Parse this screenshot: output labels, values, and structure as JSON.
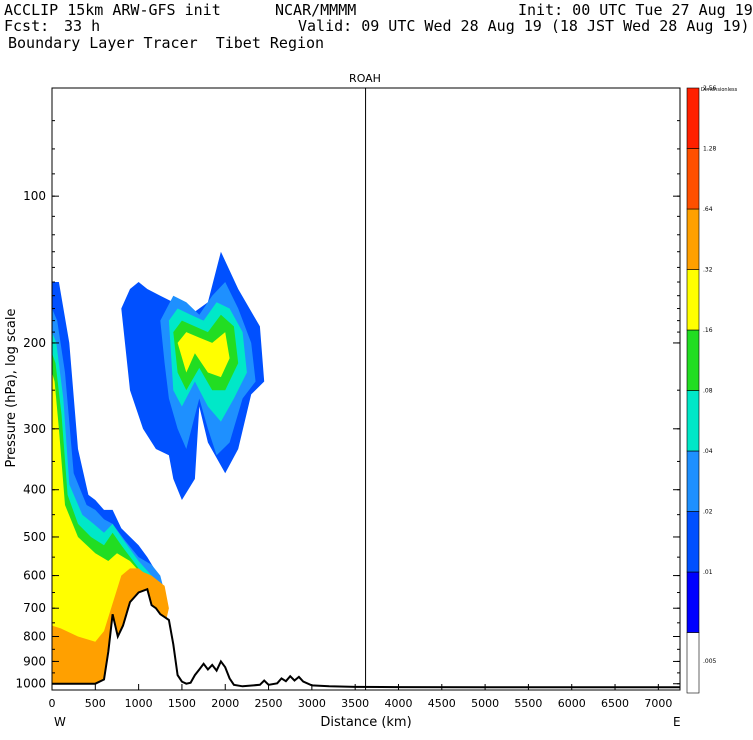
{
  "header": {
    "model": "ACCLIP 15km ARW-GFS init",
    "org": "NCAR/MMMM",
    "init": "Init: 00 UTC Tue 27 Aug 19",
    "fcst_label": "Fcst:",
    "fcst_value": "33 h",
    "valid": "Valid: 09 UTC Wed 28 Aug 19 (18 JST Wed 28 Aug 19)",
    "product": "Boundary Layer Tracer  Tibet Region"
  },
  "chart_data": {
    "type": "area",
    "title": "ROAH",
    "xlabel": "Distance (km)",
    "ylabel": "Pressure (hPa), log scale",
    "xlim": [
      0,
      7250
    ],
    "ylim": [
      1030,
      60
    ],
    "x_scale": "linear",
    "y_scale": "log",
    "xticks": [
      0,
      500,
      1000,
      1500,
      2000,
      2500,
      3000,
      3500,
      4000,
      4500,
      5000,
      5500,
      6000,
      6500,
      7000
    ],
    "yticks": [
      100,
      200,
      300,
      400,
      500,
      600,
      700,
      800,
      900,
      1000
    ],
    "left_end_label": "W",
    "right_end_label": "E",
    "marker_line_x": 3620,
    "colorbar": {
      "unit_label": "Dimensionless",
      "levels": [
        ".005",
        ".01",
        ".02",
        ".04",
        ".08",
        ".16",
        ".32",
        ".64",
        "1.28",
        "2.56"
      ],
      "colors": [
        "#ffffff",
        "#0000ff",
        "#0050ff",
        "#1e90ff",
        "#00e8c8",
        "#22dd22",
        "#ffff00",
        "#ffa000",
        "#ff5000",
        "#ff2000"
      ]
    },
    "terrain_surface": {
      "x": [
        0,
        500,
        600,
        650,
        700,
        760,
        820,
        900,
        1000,
        1100,
        1150,
        1200,
        1250,
        1300,
        1350,
        1400,
        1450,
        1500,
        1550,
        1600,
        1650,
        1700,
        1750,
        1800,
        1850,
        1900,
        1950,
        2000,
        2050,
        2100,
        2200,
        2400,
        2450,
        2500,
        2600,
        2650,
        2700,
        2750,
        2800,
        2850,
        2900,
        3000,
        3200,
        3500,
        4000,
        5000,
        6000,
        7250
      ],
      "y": [
        1000,
        1000,
        980,
        860,
        720,
        800,
        760,
        680,
        650,
        640,
        690,
        700,
        720,
        730,
        740,
        830,
        960,
        990,
        1000,
        995,
        960,
        935,
        910,
        935,
        915,
        940,
        900,
        925,
        975,
        1005,
        1012,
        1005,
        985,
        1005,
        998,
        975,
        988,
        965,
        985,
        968,
        990,
        1008,
        1012,
        1015,
        1016,
        1017,
        1017,
        1017
      ]
    },
    "tracer_regions": [
      {
        "level": ".02",
        "x": [
          0,
          80,
          200,
          300,
          420,
          500,
          600,
          700,
          800,
          1000,
          1100,
          1230,
          1300,
          1330,
          1100,
          900,
          700,
          550,
          430,
          300,
          200,
          100,
          0
        ],
        "y": [
          150,
          150,
          200,
          330,
          410,
          420,
          440,
          440,
          480,
          520,
          550,
          600,
          640,
          1000,
          1000,
          1000,
          1000,
          1000,
          1000,
          1000,
          1000,
          1000,
          1000
        ]
      },
      {
        "level": ".04",
        "x": [
          0,
          60,
          150,
          250,
          400,
          500,
          600,
          700,
          850,
          1000,
          1150,
          1250,
          1300,
          1100,
          900,
          700,
          500,
          300,
          100,
          0
        ],
        "y": [
          170,
          180,
          230,
          370,
          430,
          440,
          460,
          470,
          510,
          550,
          570,
          600,
          650,
          1000,
          1000,
          1000,
          1000,
          1000,
          1000,
          1000
        ]
      },
      {
        "level": ".08",
        "x": [
          0,
          50,
          130,
          200,
          350,
          480,
          600,
          700,
          800,
          1000,
          1150,
          1250,
          1050,
          800,
          600,
          400,
          200,
          0
        ],
        "y": [
          190,
          200,
          260,
          390,
          450,
          470,
          490,
          470,
          500,
          560,
          600,
          650,
          1000,
          1000,
          1000,
          1000,
          1000,
          1000
        ]
      },
      {
        "level": ".16",
        "x": [
          0,
          40,
          110,
          180,
          300,
          450,
          600,
          700,
          800,
          1000,
          1100,
          1200,
          1000,
          800,
          600,
          400,
          200,
          0
        ],
        "y": [
          210,
          220,
          280,
          410,
          470,
          500,
          520,
          490,
          520,
          580,
          610,
          660,
          1000,
          1000,
          1000,
          1000,
          1000,
          1000
        ]
      },
      {
        "level": ".32",
        "x": [
          0,
          30,
          80,
          150,
          300,
          500,
          650,
          750,
          900,
          1050,
          1150,
          1000,
          800,
          600,
          400,
          200,
          0
        ],
        "y": [
          230,
          240,
          300,
          430,
          500,
          540,
          560,
          540,
          560,
          600,
          640,
          1000,
          1000,
          1000,
          1000,
          1000,
          1000
        ]
      },
      {
        "level": ".64",
        "x": [
          0,
          100,
          300,
          500,
          600,
          800,
          900,
          1000,
          1050,
          1150,
          1300,
          1350,
          1150,
          800,
          600,
          400,
          200,
          0
        ],
        "y": [
          760,
          770,
          800,
          820,
          780,
          600,
          580,
          580,
          590,
          600,
          630,
          700,
          1000,
          1000,
          1000,
          1000,
          1000,
          1000
        ]
      },
      {
        "level": ".02",
        "x": [
          800,
          900,
          1000,
          1100,
          1250,
          1400,
          1600,
          1800,
          1950,
          2150,
          2400,
          2450,
          2300,
          2150,
          2000,
          1800,
          1700,
          1650,
          1500,
          1400,
          1350,
          1200,
          1050,
          900,
          800
        ],
        "y": [
          170,
          155,
          150,
          155,
          160,
          165,
          175,
          165,
          130,
          155,
          185,
          240,
          255,
          330,
          370,
          320,
          270,
          380,
          420,
          380,
          340,
          330,
          300,
          250,
          170
        ]
      },
      {
        "level": ".04",
        "x": [
          1250,
          1400,
          1550,
          1700,
          1850,
          2000,
          2150,
          2300,
          2350,
          2200,
          2050,
          1900,
          1800,
          1700,
          1550,
          1450,
          1350,
          1300,
          1250
        ],
        "y": [
          180,
          160,
          165,
          175,
          160,
          150,
          170,
          200,
          240,
          260,
          320,
          340,
          300,
          260,
          330,
          300,
          260,
          220,
          180
        ]
      },
      {
        "level": ".08",
        "x": [
          1350,
          1450,
          1600,
          1750,
          1900,
          2050,
          2200,
          2250,
          2100,
          1950,
          1800,
          1650,
          1500,
          1400,
          1350
        ],
        "y": [
          180,
          170,
          175,
          180,
          165,
          170,
          190,
          230,
          260,
          290,
          270,
          240,
          270,
          250,
          180
        ]
      },
      {
        "level": ".16",
        "x": [
          1400,
          1500,
          1650,
          1800,
          1950,
          2100,
          2150,
          2000,
          1850,
          1700,
          1550,
          1450,
          1400
        ],
        "y": [
          190,
          180,
          185,
          190,
          175,
          185,
          220,
          250,
          250,
          225,
          250,
          230,
          190
        ]
      },
      {
        "level": ".32",
        "x": [
          1450,
          1550,
          1700,
          1850,
          2000,
          2050,
          1950,
          1800,
          1650,
          1550,
          1450
        ],
        "y": [
          200,
          190,
          195,
          200,
          190,
          215,
          235,
          230,
          210,
          230,
          200
        ]
      }
    ]
  }
}
